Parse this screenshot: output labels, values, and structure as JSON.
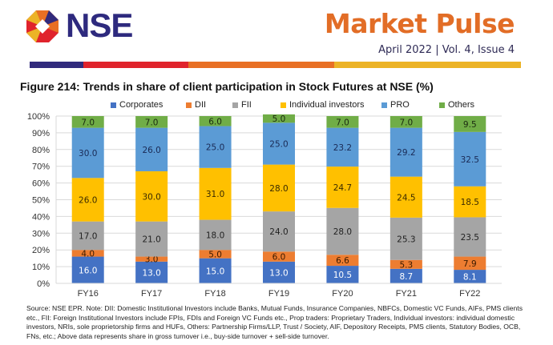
{
  "header": {
    "brand": "NSE",
    "publication": "Market Pulse",
    "issue": "April 2022 | Vol. 4, Issue 4",
    "stripe_colors": [
      "#312a7c",
      "#e0232c",
      "#e86f24",
      "#ecb326"
    ]
  },
  "figure": {
    "title": "Figure 214: Trends in share of client participation in Stock Futures at NSE (%)"
  },
  "chart_data": {
    "type": "bar",
    "stacked": true,
    "title": "Figure 214: Trends in share of client participation in Stock Futures at NSE (%)",
    "xlabel": "",
    "ylabel": "",
    "categories": [
      "FY16",
      "FY17",
      "FY18",
      "FY19",
      "FY20",
      "FY21",
      "FY22"
    ],
    "ylim": [
      0,
      100
    ],
    "yticks": [
      "0%",
      "10%",
      "20%",
      "30%",
      "40%",
      "50%",
      "60%",
      "70%",
      "80%",
      "90%",
      "100%"
    ],
    "grid": true,
    "legend_position": "top",
    "series": [
      {
        "name": "Corporates",
        "color": "#4472c4",
        "label_color": "#ffffff",
        "values": [
          16.0,
          13.0,
          15.0,
          13.0,
          10.5,
          8.7,
          8.1
        ]
      },
      {
        "name": "DII",
        "color": "#ed7d31",
        "label_color": "#3a1a00",
        "values": [
          4.0,
          3.0,
          5.0,
          6.0,
          6.6,
          5.3,
          7.9
        ]
      },
      {
        "name": "FII",
        "color": "#a5a5a5",
        "label_color": "#222222",
        "values": [
          17.0,
          21.0,
          18.0,
          24.0,
          28.0,
          25.3,
          23.5
        ]
      },
      {
        "name": "Individual investors",
        "color": "#ffc000",
        "label_color": "#3a2a00",
        "values": [
          26.0,
          30.0,
          31.0,
          28.0,
          24.7,
          24.5,
          18.5
        ]
      },
      {
        "name": "PRO",
        "color": "#5b9bd5",
        "label_color": "#1a2a55",
        "values": [
          30.0,
          26.0,
          25.0,
          25.0,
          23.2,
          29.2,
          32.5
        ]
      },
      {
        "name": "Others",
        "color": "#70ad47",
        "label_color": "#1a2a10",
        "values": [
          7.0,
          7.0,
          6.0,
          5.0,
          7.0,
          7.0,
          9.5
        ]
      }
    ]
  },
  "footnote": "Source: NSE EPR. Note: DII: Domestic Institutional Investors include Banks, Mutual Funds, Insurance Companies, NBFCs, Domestic VC Funds, AIFs, PMS clients etc., FII: Foreign Institutional Investors include FPIs, FDIs and Foreign VC Funds etc., Prop traders: Proprietary Traders, Individual investors: individual domestic investors, NRIs, sole proprietorship firms and HUFs, Others: Partnership Firms/LLP, Trust / Society, AIF, Depository Receipts, PMS clients, Statutory Bodies, OCB, FNs, etc.; Above data represents share in gross turnover i.e., buy-side turnover + sell-side turnover."
}
